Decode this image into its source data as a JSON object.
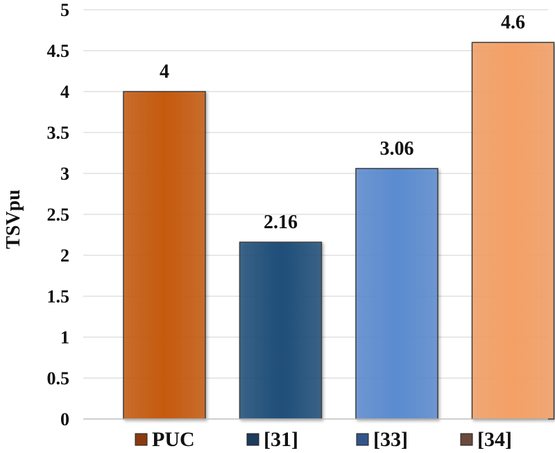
{
  "chart_data": {
    "type": "bar",
    "title": "",
    "xlabel": "",
    "ylabel": "TSVpu",
    "categories": [
      "PUC",
      "[31]",
      "[33]",
      "[34]"
    ],
    "values": [
      4,
      2.16,
      3.06,
      4.6
    ],
    "data_labels": [
      "4",
      "2.16",
      "3.06",
      "4.6"
    ],
    "colors": [
      "#C55A11",
      "#1F4E79",
      "#5B8BD0",
      "#F4A065"
    ],
    "ylim": [
      0,
      5
    ],
    "yticks": [
      "0",
      "0.5",
      "1",
      "1.5",
      "2",
      "2.5",
      "3",
      "3.5",
      "4",
      "4.5",
      "5"
    ],
    "grid": true,
    "legend": {
      "position": "bottom",
      "entries": [
        "PUC",
        "[31]",
        "[33]",
        "[34]"
      ],
      "swatch_colors": [
        "#8B3A10",
        "#1E3C5C",
        "#34558A",
        "#6A4A3A"
      ]
    }
  }
}
